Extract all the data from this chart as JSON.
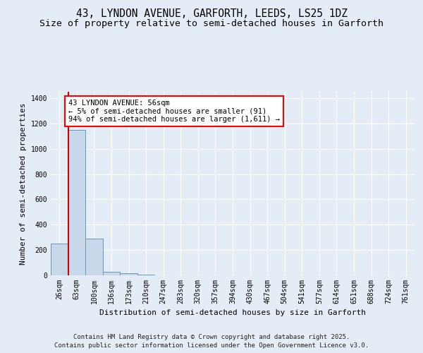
{
  "title": "43, LYNDON AVENUE, GARFORTH, LEEDS, LS25 1DZ",
  "subtitle": "Size of property relative to semi-detached houses in Garforth",
  "xlabel": "Distribution of semi-detached houses by size in Garforth",
  "ylabel": "Number of semi-detached properties",
  "categories": [
    "26sqm",
    "63sqm",
    "100sqm",
    "136sqm",
    "173sqm",
    "210sqm",
    "247sqm",
    "283sqm",
    "320sqm",
    "357sqm",
    "394sqm",
    "430sqm",
    "467sqm",
    "504sqm",
    "541sqm",
    "577sqm",
    "614sqm",
    "651sqm",
    "688sqm",
    "724sqm",
    "761sqm"
  ],
  "bar_values": [
    250,
    1150,
    290,
    30,
    15,
    5,
    0,
    0,
    0,
    0,
    0,
    0,
    0,
    0,
    0,
    0,
    0,
    0,
    0,
    0,
    0
  ],
  "bar_color": "#c8d8ea",
  "bar_edge_color": "#6699bb",
  "background_color": "#e4ecf5",
  "grid_color": "#ffffff",
  "redline_color": "#cc0000",
  "annotation_text": "43 LYNDON AVENUE: 56sqm\n← 5% of semi-detached houses are smaller (91)\n94% of semi-detached houses are larger (1,611) →",
  "ylim": [
    0,
    1450
  ],
  "yticks": [
    0,
    200,
    400,
    600,
    800,
    1000,
    1200,
    1400
  ],
  "footer_line1": "Contains HM Land Registry data © Crown copyright and database right 2025.",
  "footer_line2": "Contains public sector information licensed under the Open Government Licence v3.0.",
  "title_fontsize": 10.5,
  "subtitle_fontsize": 9.5,
  "axis_label_fontsize": 8,
  "tick_fontsize": 7,
  "annotation_fontsize": 7.5,
  "footer_fontsize": 6.5
}
